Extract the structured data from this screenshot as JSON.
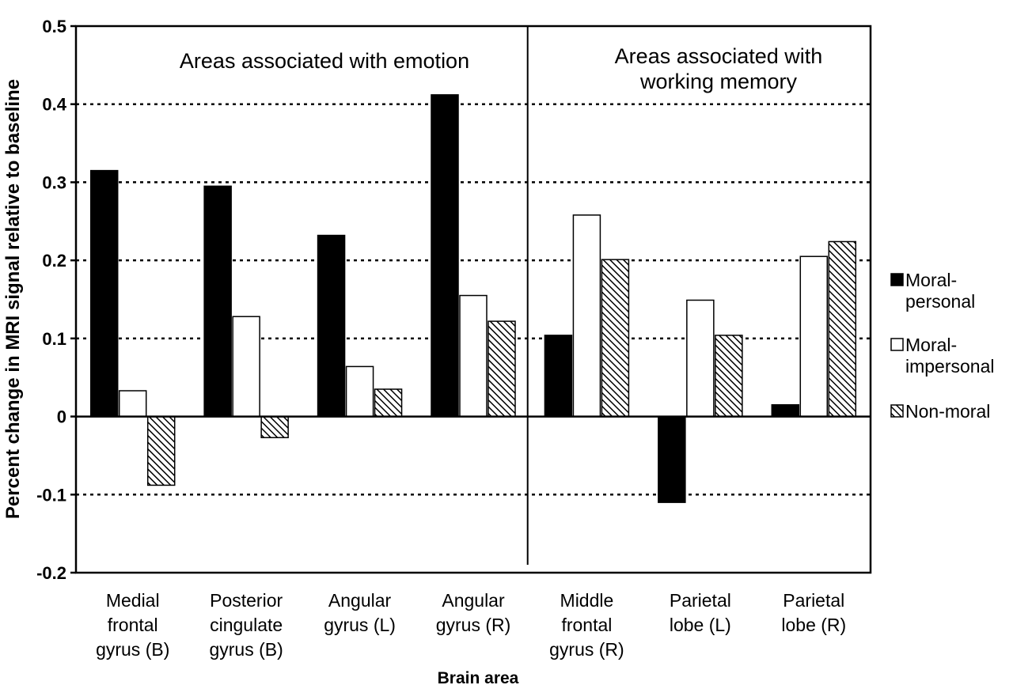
{
  "chart_data": {
    "type": "bar",
    "ylabel": "Percent change in MRI signal relative to baseline",
    "xlabel": "Brain area",
    "ylim": [
      -0.2,
      0.5
    ],
    "yticks": [
      "0.5",
      "0.4",
      "0.3",
      "0.2",
      "0.1",
      "0",
      "-0.1",
      "-0.2"
    ],
    "ytick_values": [
      0.5,
      0.4,
      0.3,
      0.2,
      0.1,
      0,
      -0.1,
      -0.2
    ],
    "grid": "horizontal dotted",
    "legend_position": "right",
    "categories": [
      [
        "Medial",
        "frontal",
        "gyrus (B)"
      ],
      [
        "Posterior",
        "cingulate",
        "gyrus (B)"
      ],
      [
        "Angular",
        "gyrus (L)"
      ],
      [
        "Angular",
        "gyrus (R)"
      ],
      [
        "Middle",
        "frontal",
        "gyrus (R)"
      ],
      [
        "Parietal",
        "lobe (L)"
      ],
      [
        "Parietal",
        "lobe (R)"
      ]
    ],
    "series": [
      {
        "name": [
          "Moral-",
          "personal"
        ],
        "fill": "solid",
        "color": "#000000",
        "values": [
          0.315,
          0.295,
          0.232,
          0.412,
          0.104,
          -0.11,
          0.015
        ]
      },
      {
        "name": [
          "Moral-",
          "impersonal"
        ],
        "fill": "open",
        "color": "#ffffff",
        "values": [
          0.033,
          0.128,
          0.064,
          0.155,
          0.258,
          0.149,
          0.205
        ]
      },
      {
        "name": [
          "Non-moral"
        ],
        "fill": "hatched",
        "color": "#000000",
        "values": [
          -0.088,
          -0.027,
          0.035,
          0.122,
          0.201,
          0.104,
          0.224
        ]
      }
    ],
    "regions": [
      {
        "lines": [
          "Areas associated with emotion"
        ],
        "first_category": 0,
        "last_category": 3
      },
      {
        "lines": [
          "Areas associated with",
          "working memory"
        ],
        "first_category": 4,
        "last_category": 6
      }
    ]
  }
}
